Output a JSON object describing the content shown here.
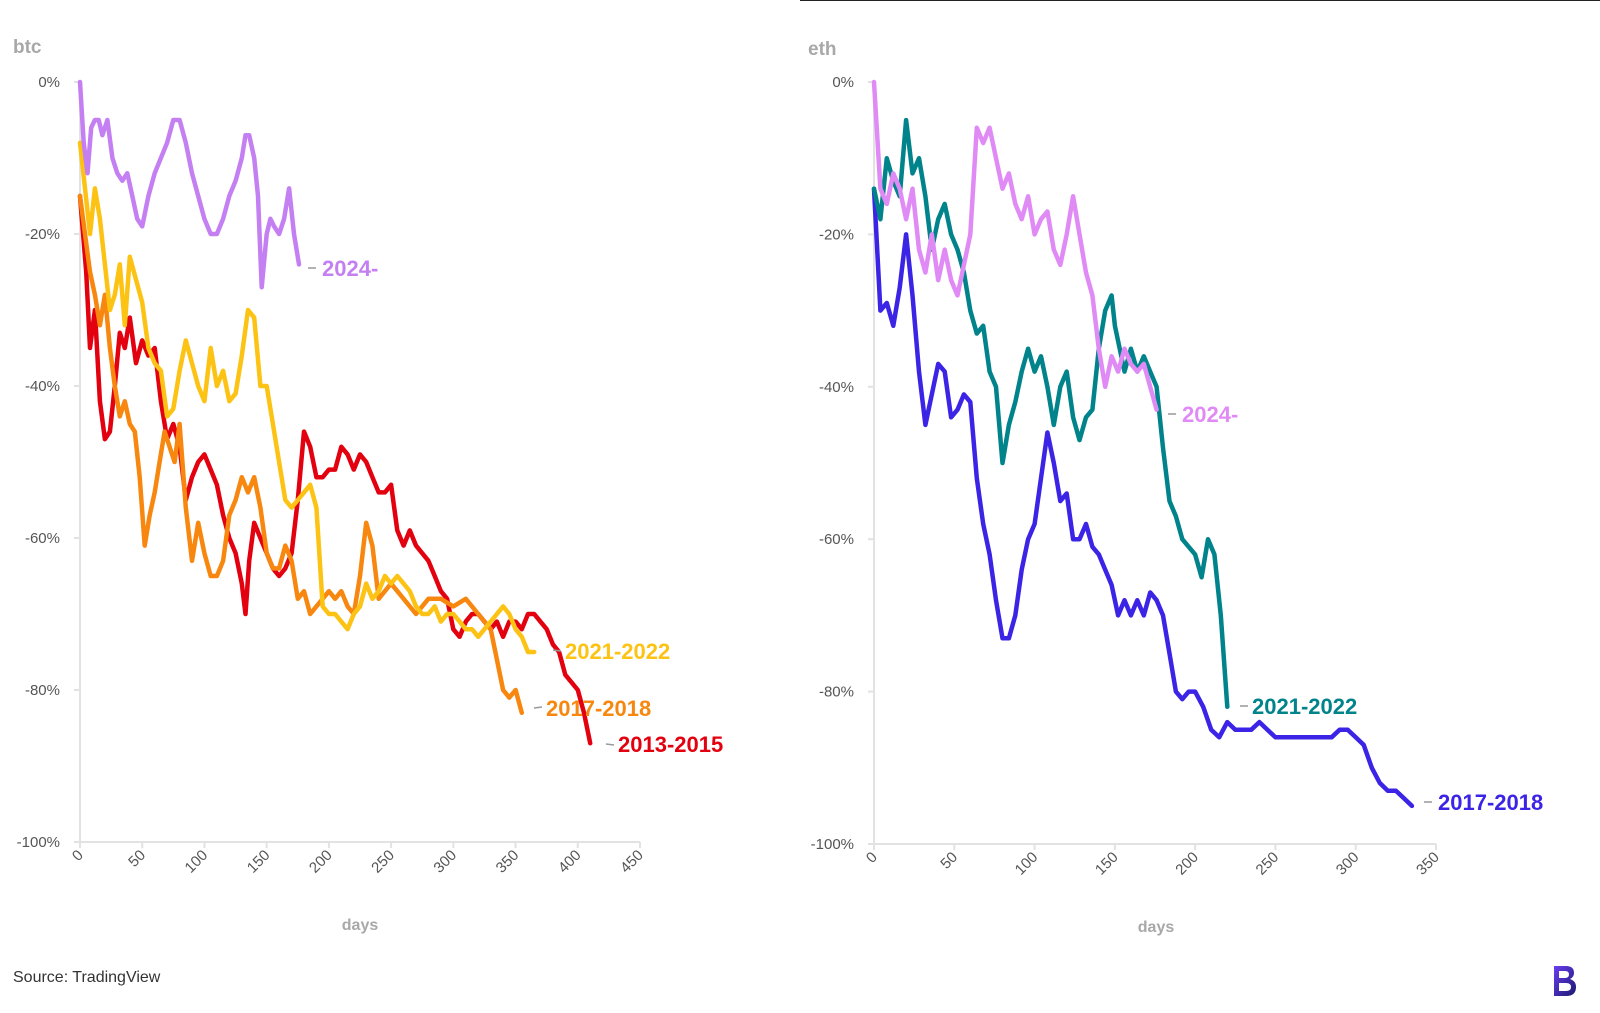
{
  "source": "Source: TradingView",
  "brand_icon": "bloomberg-b-logo",
  "chart_data": [
    {
      "type": "line",
      "title": "btc",
      "xlabel": "days",
      "ylabel": "",
      "xlim": [
        0,
        450
      ],
      "ylim": [
        -100,
        0
      ],
      "x_ticks": [
        "0",
        "50",
        "100",
        "150",
        "200",
        "250",
        "300",
        "350",
        "400",
        "450"
      ],
      "y_ticks": [
        "0%",
        "-20%",
        "-40%",
        "-60%",
        "-80%",
        "-100%"
      ],
      "series": [
        {
          "name": "2013-2015",
          "color": "#e3000f",
          "x": [
            0,
            5,
            8,
            12,
            16,
            20,
            24,
            28,
            32,
            36,
            40,
            45,
            50,
            55,
            60,
            65,
            70,
            75,
            80,
            85,
            90,
            95,
            100,
            105,
            110,
            115,
            120,
            125,
            130,
            133,
            136,
            140,
            145,
            150,
            155,
            160,
            165,
            170,
            175,
            180,
            185,
            190,
            195,
            200,
            205,
            210,
            215,
            220,
            225,
            230,
            235,
            240,
            245,
            250,
            255,
            260,
            265,
            270,
            275,
            280,
            285,
            290,
            295,
            300,
            305,
            310,
            315,
            320,
            325,
            330,
            335,
            340,
            345,
            350,
            355,
            360,
            365,
            370,
            375,
            380,
            385,
            390,
            395,
            400,
            405,
            410
          ],
          "y": [
            -15,
            -25,
            -35,
            -30,
            -42,
            -47,
            -46,
            -40,
            -33,
            -35,
            -31,
            -37,
            -34,
            -36,
            -35,
            -42,
            -47,
            -45,
            -48,
            -55,
            -52,
            -50,
            -49,
            -51,
            -53,
            -57,
            -60,
            -62,
            -66,
            -70,
            -63,
            -58,
            -60,
            -62,
            -64,
            -65,
            -64,
            -62,
            -55,
            -46,
            -48,
            -52,
            -52,
            -51,
            -51,
            -48,
            -49,
            -51,
            -49,
            -50,
            -52,
            -54,
            -54,
            -53,
            -59,
            -61,
            -59,
            -61,
            -62,
            -63,
            -65,
            -67,
            -68,
            -72,
            -73,
            -71,
            -70,
            -70,
            -71,
            -72,
            -71,
            -73,
            -71,
            -71,
            -72,
            -70,
            -70,
            -71,
            -72,
            -74,
            -75,
            -78,
            -79,
            -80,
            -83,
            -87
          ]
        },
        {
          "name": "2017-2018",
          "color": "#f7870f",
          "x": [
            0,
            4,
            8,
            12,
            16,
            20,
            24,
            28,
            32,
            36,
            40,
            44,
            48,
            52,
            56,
            60,
            64,
            68,
            72,
            76,
            80,
            85,
            90,
            95,
            100,
            105,
            110,
            115,
            120,
            125,
            130,
            135,
            140,
            145,
            150,
            155,
            160,
            165,
            170,
            175,
            180,
            185,
            190,
            195,
            200,
            205,
            210,
            215,
            220,
            225,
            230,
            235,
            240,
            250,
            260,
            270,
            280,
            290,
            300,
            310,
            320,
            330,
            340,
            345,
            350,
            355
          ],
          "y": [
            -15,
            -20,
            -25,
            -28,
            -32,
            -28,
            -35,
            -40,
            -44,
            -42,
            -45,
            -46,
            -52,
            -61,
            -57,
            -54,
            -50,
            -46,
            -48,
            -50,
            -45,
            -56,
            -63,
            -58,
            -62,
            -65,
            -65,
            -63,
            -57,
            -55,
            -52,
            -54,
            -52,
            -56,
            -62,
            -64,
            -64,
            -61,
            -63,
            -68,
            -67,
            -70,
            -69,
            -68,
            -67,
            -68,
            -67,
            -69,
            -70,
            -65,
            -58,
            -61,
            -68,
            -66,
            -68,
            -70,
            -68,
            -68,
            -69,
            -68,
            -70,
            -72,
            -80,
            -81,
            -80,
            -83
          ]
        },
        {
          "name": "2021-2022",
          "color": "#fcc314",
          "x": [
            0,
            4,
            8,
            12,
            16,
            20,
            24,
            28,
            32,
            36,
            40,
            45,
            50,
            55,
            60,
            65,
            70,
            75,
            80,
            85,
            90,
            95,
            100,
            105,
            110,
            115,
            120,
            125,
            130,
            135,
            140,
            145,
            150,
            155,
            160,
            165,
            170,
            175,
            180,
            185,
            190,
            195,
            200,
            205,
            210,
            215,
            220,
            225,
            230,
            235,
            240,
            245,
            250,
            255,
            260,
            265,
            270,
            275,
            280,
            285,
            290,
            295,
            300,
            305,
            310,
            315,
            320,
            325,
            330,
            335,
            340,
            345,
            350,
            355,
            360,
            365
          ],
          "y": [
            -8,
            -14,
            -20,
            -14,
            -18,
            -24,
            -30,
            -28,
            -24,
            -32,
            -23,
            -26,
            -29,
            -35,
            -37,
            -38,
            -44,
            -43,
            -38,
            -34,
            -37,
            -40,
            -42,
            -35,
            -40,
            -38,
            -42,
            -41,
            -36,
            -30,
            -31,
            -40,
            -40,
            -45,
            -50,
            -55,
            -56,
            -55,
            -54,
            -53,
            -56,
            -69,
            -70,
            -70,
            -71,
            -72,
            -70,
            -69,
            -66,
            -68,
            -67,
            -65,
            -66,
            -65,
            -66,
            -67,
            -69,
            -70,
            -70,
            -69,
            -71,
            -70,
            -70,
            -71,
            -72,
            -72,
            -73,
            -72,
            -71,
            -70,
            -69,
            -70,
            -72,
            -73,
            -75,
            -75
          ]
        },
        {
          "name": "2024-",
          "color": "#c480f2",
          "x": [
            0,
            3,
            6,
            9,
            12,
            15,
            18,
            22,
            26,
            30,
            34,
            38,
            42,
            46,
            50,
            55,
            60,
            65,
            70,
            75,
            80,
            85,
            90,
            95,
            100,
            105,
            110,
            115,
            120,
            125,
            130,
            133,
            136,
            140,
            143,
            146,
            150,
            153,
            156,
            160,
            164,
            168,
            172,
            176
          ],
          "y": [
            0,
            -8,
            -12,
            -6,
            -5,
            -5,
            -7,
            -5,
            -10,
            -12,
            -13,
            -12,
            -15,
            -18,
            -19,
            -15,
            -12,
            -10,
            -8,
            -5,
            -5,
            -8,
            -12,
            -15,
            -18,
            -20,
            -20,
            -18,
            -15,
            -13,
            -10,
            -7,
            -7,
            -10,
            -15,
            -27,
            -20,
            -18,
            -19,
            -20,
            -18,
            -14,
            -20,
            -24
          ]
        }
      ]
    },
    {
      "type": "line",
      "title": "eth",
      "xlabel": "days",
      "ylabel": "",
      "xlim": [
        0,
        350
      ],
      "ylim": [
        -100,
        0
      ],
      "x_ticks": [
        "0",
        "50",
        "100",
        "150",
        "200",
        "250",
        "300",
        "350"
      ],
      "y_ticks": [
        "0%",
        "-20%",
        "-40%",
        "-60%",
        "-80%",
        "-100%"
      ],
      "series": [
        {
          "name": "2017-2018",
          "color": "#3b24e6",
          "x": [
            0,
            4,
            8,
            12,
            16,
            20,
            24,
            28,
            32,
            36,
            40,
            44,
            48,
            52,
            56,
            60,
            64,
            68,
            72,
            76,
            80,
            84,
            88,
            92,
            96,
            100,
            104,
            108,
            112,
            116,
            120,
            124,
            128,
            132,
            136,
            140,
            144,
            148,
            152,
            156,
            160,
            164,
            168,
            172,
            176,
            180,
            184,
            188,
            192,
            196,
            200,
            205,
            210,
            215,
            220,
            225,
            230,
            235,
            240,
            245,
            250,
            255,
            260,
            265,
            270,
            275,
            280,
            285,
            290,
            295,
            300,
            305,
            310,
            315,
            320,
            325,
            330,
            335
          ],
          "y": [
            -14,
            -30,
            -29,
            -32,
            -27,
            -20,
            -28,
            -38,
            -45,
            -41,
            -37,
            -38,
            -44,
            -43,
            -41,
            -42,
            -52,
            -58,
            -62,
            -68,
            -73,
            -73,
            -70,
            -64,
            -60,
            -58,
            -52,
            -46,
            -50,
            -55,
            -54,
            -60,
            -60,
            -58,
            -61,
            -62,
            -64,
            -66,
            -70,
            -68,
            -70,
            -68,
            -70,
            -67,
            -68,
            -70,
            -75,
            -80,
            -81,
            -80,
            -80,
            -82,
            -85,
            -86,
            -84,
            -85,
            -85,
            -85,
            -84,
            -85,
            -86,
            -86,
            -86,
            -86,
            -86,
            -86,
            -86,
            -86,
            -85,
            -85,
            -86,
            -87,
            -90,
            -92,
            -93,
            -93,
            -94,
            -95
          ]
        },
        {
          "name": "2021-2022",
          "color": "#00838a",
          "x": [
            0,
            4,
            8,
            12,
            16,
            20,
            24,
            28,
            32,
            36,
            40,
            44,
            48,
            52,
            56,
            60,
            64,
            68,
            72,
            76,
            80,
            84,
            88,
            92,
            96,
            100,
            104,
            108,
            112,
            116,
            120,
            124,
            128,
            132,
            136,
            140,
            144,
            148,
            150,
            152,
            156,
            160,
            164,
            168,
            172,
            176,
            180,
            184,
            188,
            192,
            196,
            200,
            204,
            208,
            212,
            216,
            220
          ],
          "y": [
            -14,
            -18,
            -10,
            -13,
            -15,
            -5,
            -12,
            -10,
            -15,
            -22,
            -18,
            -16,
            -20,
            -22,
            -25,
            -30,
            -33,
            -32,
            -38,
            -40,
            -50,
            -45,
            -42,
            -38,
            -35,
            -38,
            -36,
            -40,
            -45,
            -40,
            -38,
            -44,
            -47,
            -44,
            -43,
            -35,
            -30,
            -28,
            -32,
            -34,
            -38,
            -35,
            -38,
            -36,
            -38,
            -40,
            -48,
            -55,
            -57,
            -60,
            -61,
            -62,
            -65,
            -60,
            -62,
            -70,
            -82
          ]
        },
        {
          "name": "2024-",
          "color": "#e08bf5",
          "x": [
            0,
            4,
            8,
            12,
            16,
            20,
            24,
            28,
            32,
            36,
            40,
            44,
            48,
            52,
            56,
            60,
            64,
            68,
            72,
            76,
            80,
            84,
            88,
            92,
            96,
            100,
            104,
            108,
            112,
            116,
            120,
            124,
            128,
            132,
            136,
            140,
            144,
            148,
            152,
            156,
            160,
            164,
            168,
            172,
            176
          ],
          "y": [
            0,
            -14,
            -16,
            -12,
            -14,
            -18,
            -14,
            -22,
            -25,
            -20,
            -26,
            -22,
            -26,
            -28,
            -24,
            -20,
            -6,
            -8,
            -6,
            -10,
            -14,
            -12,
            -16,
            -18,
            -15,
            -20,
            -18,
            -17,
            -22,
            -24,
            -20,
            -15,
            -20,
            -25,
            -28,
            -35,
            -40,
            -36,
            -38,
            -35,
            -37,
            -38,
            -37,
            -40,
            -43
          ]
        }
      ]
    }
  ]
}
